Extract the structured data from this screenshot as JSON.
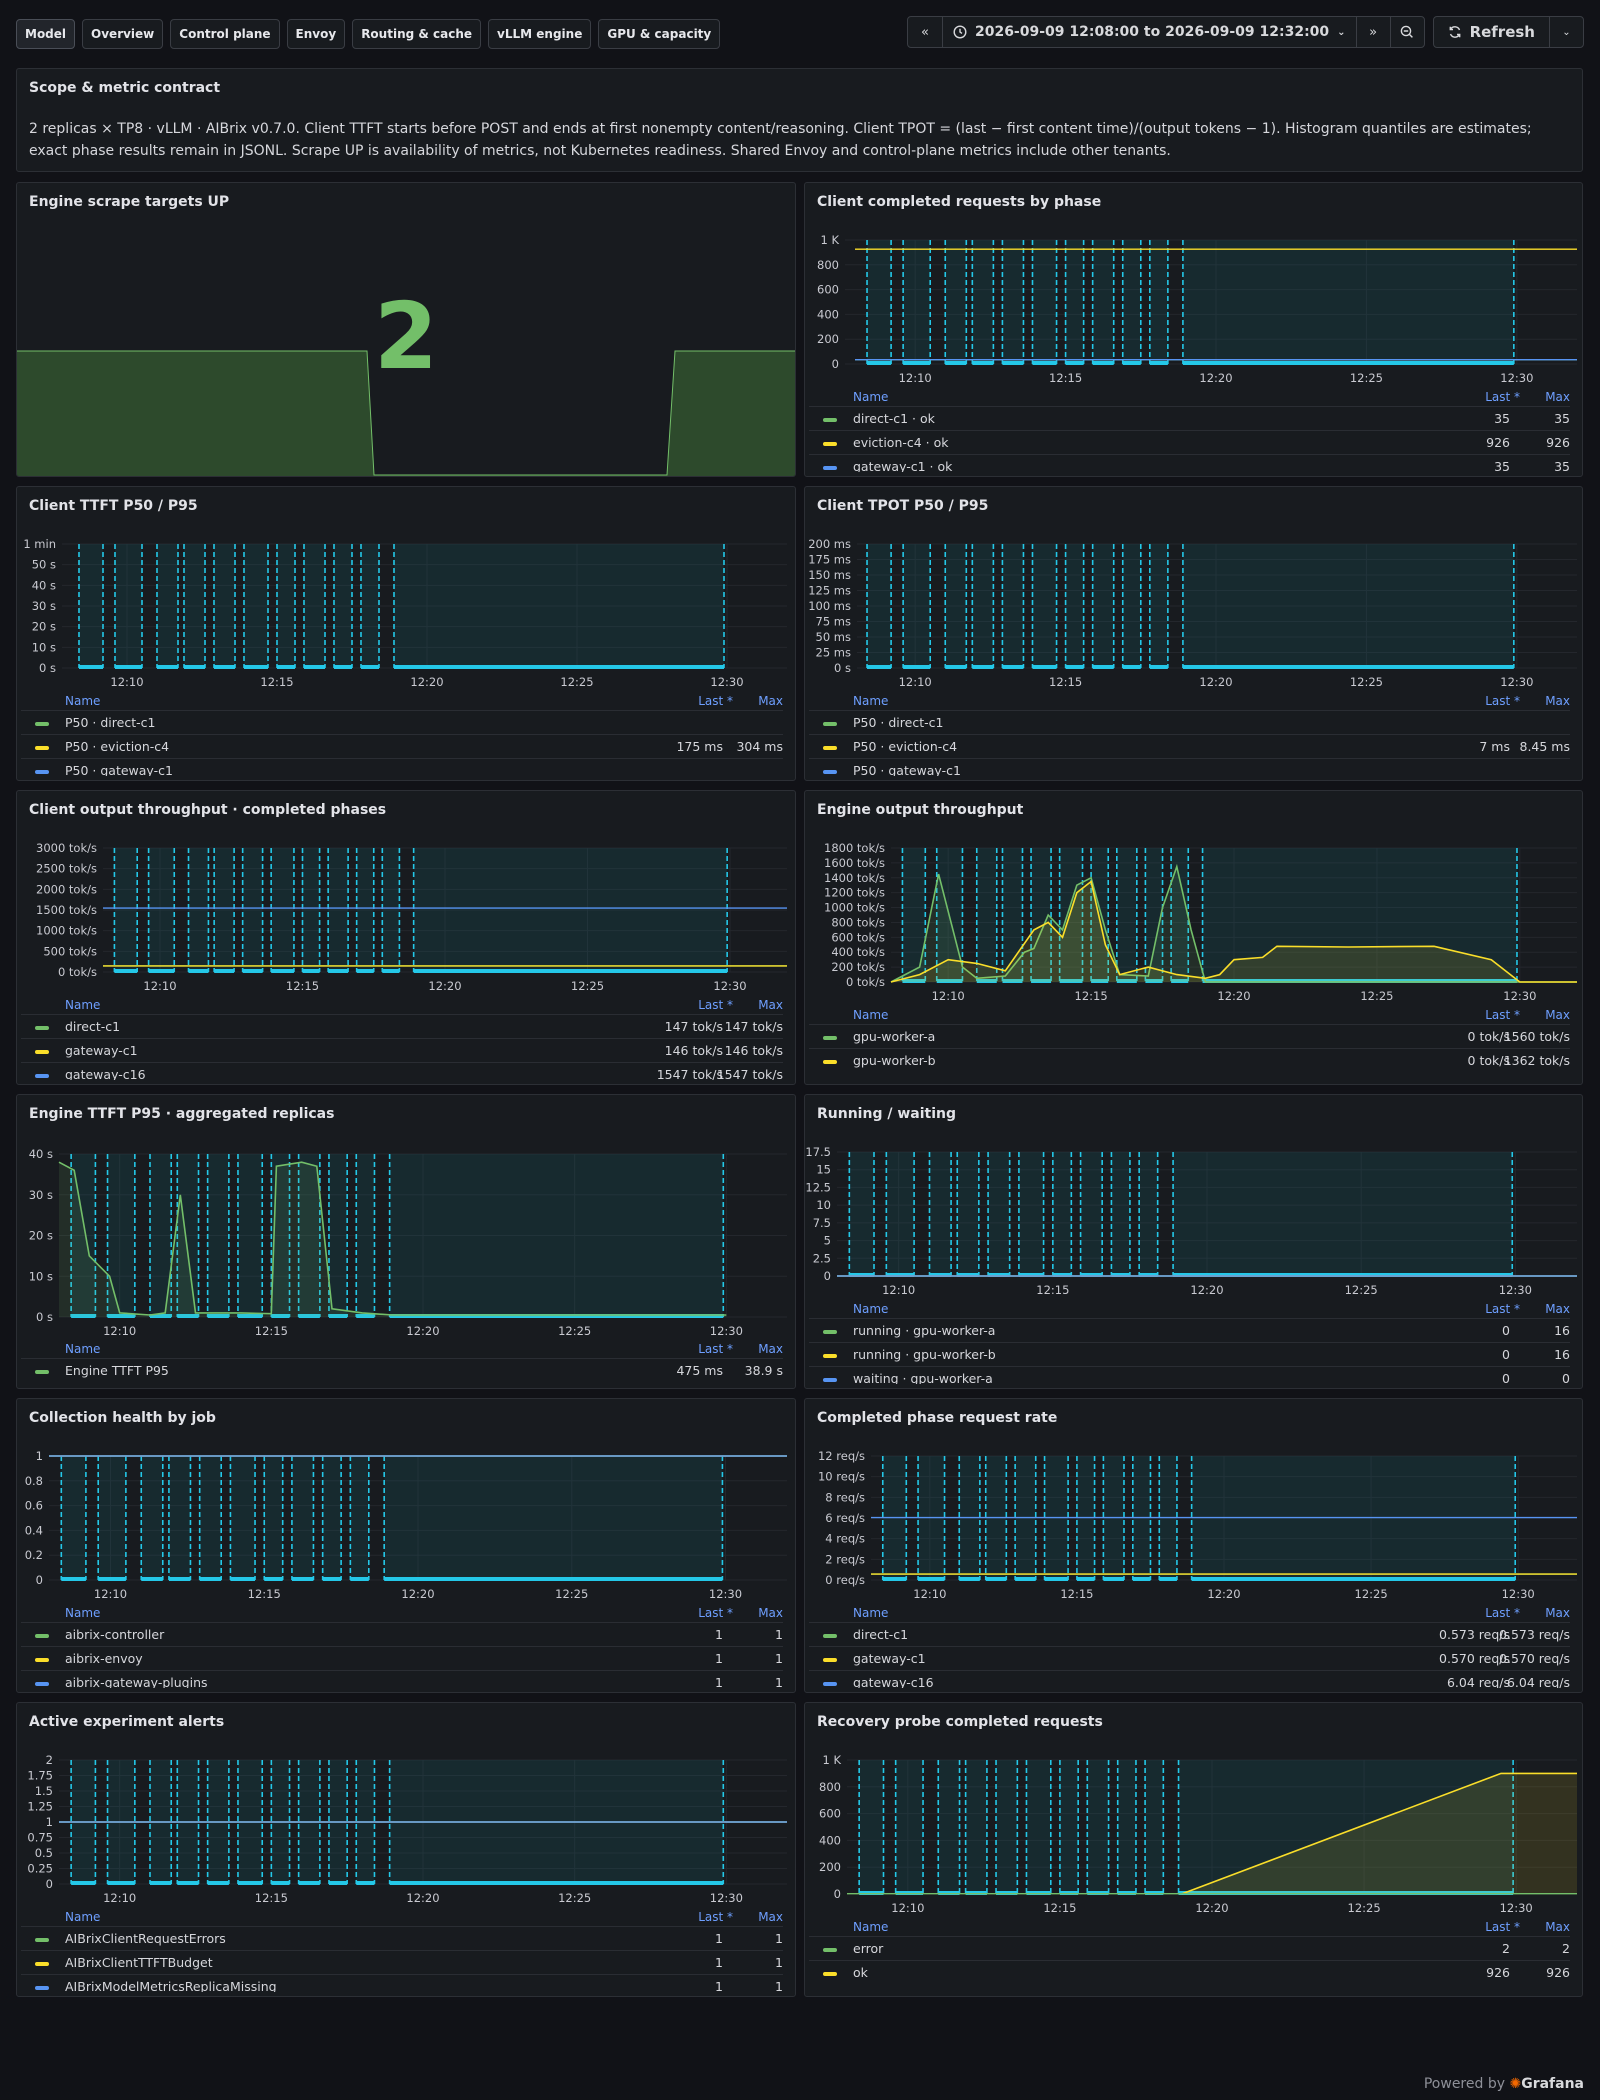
{
  "tabs": [
    "Model",
    "Overview",
    "Control plane",
    "Envoy",
    "Routing & cache",
    "vLLM engine",
    "GPU & capacity"
  ],
  "time_range": "2026-09-09 12:08:00 to 2026-09-09 12:32:00",
  "refresh_label": "Refresh",
  "footer": {
    "powered": "Powered by",
    "brand": "Grafana"
  },
  "scope": {
    "title": "Scope & metric contract",
    "text": "2 replicas × TP8 · vLLM · AIBrix v0.7.0. Client TTFT starts before POST and ends at first nonempty content/reasoning. Client TPOT = (last − first content time)/(output tokens − 1). Histogram quantiles are estimates; exact phase results remain in JSONL. Scrape UP is availability of metrics, not Kubernetes readiness. Shared Envoy and control-plane metrics include other tenants."
  },
  "stat": {
    "title": "Engine scrape targets UP",
    "value": "2"
  },
  "panels": [
    {
      "id": "completed",
      "title": "Client completed requests by phase",
      "col_last": "Last *",
      "col_max": "Max",
      "y_ticks": [
        "0",
        "200",
        "400",
        "600",
        "800",
        "1 K"
      ],
      "x_ticks": [
        "12:10",
        "12:15",
        "12:20",
        "12:25",
        "12:30"
      ],
      "legend": [
        {
          "name": "direct-c1 · ok",
          "last": "35",
          "max": "35",
          "color": "#73bf69"
        },
        {
          "name": "eviction-c4 · ok",
          "last": "926",
          "max": "926",
          "color": "#fade2a"
        },
        {
          "name": "gateway-c1 · ok",
          "last": "35",
          "max": "35",
          "color": "#5794f2"
        }
      ]
    },
    {
      "id": "ttft",
      "title": "Client TTFT P50 / P95",
      "col_last": "Last *",
      "col_max": "Max",
      "y_ticks": [
        "0 s",
        "10 s",
        "20 s",
        "30 s",
        "40 s",
        "50 s",
        "1 min"
      ],
      "x_ticks": [
        "12:10",
        "12:15",
        "12:20",
        "12:25",
        "12:30"
      ],
      "legend": [
        {
          "name": "P50 · direct-c1",
          "last": "",
          "max": "",
          "color": "#73bf69"
        },
        {
          "name": "P50 · eviction-c4",
          "last": "175 ms",
          "max": "304 ms",
          "color": "#fade2a"
        },
        {
          "name": "P50 · gateway-c1",
          "last": "",
          "max": "",
          "color": "#5794f2"
        }
      ]
    },
    {
      "id": "tpot",
      "title": "Client TPOT P50 / P95",
      "col_last": "Last *",
      "col_max": "Max",
      "y_ticks": [
        "0 s",
        "25 ms",
        "50 ms",
        "75 ms",
        "100 ms",
        "125 ms",
        "150 ms",
        "175 ms",
        "200 ms"
      ],
      "x_ticks": [
        "12:10",
        "12:15",
        "12:20",
        "12:25",
        "12:30"
      ],
      "legend": [
        {
          "name": "P50 · direct-c1",
          "last": "",
          "max": "",
          "color": "#73bf69"
        },
        {
          "name": "P50 · eviction-c4",
          "last": "7 ms",
          "max": "8.45 ms",
          "color": "#fade2a"
        },
        {
          "name": "P50 · gateway-c1",
          "last": "",
          "max": "",
          "color": "#5794f2"
        }
      ]
    },
    {
      "id": "cthru",
      "title": "Client output throughput · completed phases",
      "col_last": "Last *",
      "col_max": "Max",
      "y_ticks": [
        "0 tok/s",
        "500 tok/s",
        "1000 tok/s",
        "1500 tok/s",
        "2000 tok/s",
        "2500 tok/s",
        "3000 tok/s"
      ],
      "x_ticks": [
        "12:10",
        "12:15",
        "12:20",
        "12:25",
        "12:30"
      ],
      "legend": [
        {
          "name": "direct-c1",
          "last": "147 tok/s",
          "max": "147 tok/s",
          "color": "#73bf69"
        },
        {
          "name": "gateway-c1",
          "last": "146 tok/s",
          "max": "146 tok/s",
          "color": "#fade2a"
        },
        {
          "name": "gateway-c16",
          "last": "1547 tok/s",
          "max": "1547 tok/s",
          "color": "#5794f2"
        }
      ]
    },
    {
      "id": "ethru",
      "title": "Engine output throughput",
      "col_last": "Last *",
      "col_max": "Max",
      "y_ticks": [
        "0 tok/s",
        "200 tok/s",
        "400 tok/s",
        "600 tok/s",
        "800 tok/s",
        "1000 tok/s",
        "1200 tok/s",
        "1400 tok/s",
        "1600 tok/s",
        "1800 tok/s"
      ],
      "x_ticks": [
        "12:10",
        "12:15",
        "12:20",
        "12:25",
        "12:30"
      ],
      "legend": [
        {
          "name": "gpu-worker-a",
          "last": "0 tok/s",
          "max": "1560 tok/s",
          "color": "#73bf69"
        },
        {
          "name": "gpu-worker-b",
          "last": "0 tok/s",
          "max": "1362 tok/s",
          "color": "#fade2a"
        }
      ]
    },
    {
      "id": "ettft",
      "title": "Engine TTFT P95 · aggregated replicas",
      "col_last": "Last *",
      "col_max": "Max",
      "y_ticks": [
        "0 s",
        "10 s",
        "20 s",
        "30 s",
        "40 s"
      ],
      "x_ticks": [
        "12:10",
        "12:15",
        "12:20",
        "12:25",
        "12:30"
      ],
      "legend": [
        {
          "name": "Engine TTFT P95",
          "last": "475 ms",
          "max": "38.9 s",
          "color": "#73bf69"
        }
      ]
    },
    {
      "id": "running",
      "title": "Running / waiting",
      "col_last": "Last *",
      "col_max": "Max",
      "y_ticks": [
        "0",
        "2.5",
        "5",
        "7.5",
        "10",
        "12.5",
        "15",
        "17.5"
      ],
      "x_ticks": [
        "12:10",
        "12:15",
        "12:20",
        "12:25",
        "12:30"
      ],
      "legend": [
        {
          "name": "running · gpu-worker-a",
          "last": "0",
          "max": "16",
          "color": "#73bf69"
        },
        {
          "name": "running · gpu-worker-b",
          "last": "0",
          "max": "16",
          "color": "#fade2a"
        },
        {
          "name": "waiting · gpu-worker-a",
          "last": "0",
          "max": "0",
          "color": "#5794f2"
        }
      ]
    },
    {
      "id": "health",
      "title": "Collection health by job",
      "col_last": "Last *",
      "col_max": "Max",
      "y_ticks": [
        "0",
        "0.2",
        "0.4",
        "0.6",
        "0.8",
        "1"
      ],
      "x_ticks": [
        "12:10",
        "12:15",
        "12:20",
        "12:25",
        "12:30"
      ],
      "legend": [
        {
          "name": "aibrix-controller",
          "last": "1",
          "max": "1",
          "color": "#73bf69"
        },
        {
          "name": "aibrix-envoy",
          "last": "1",
          "max": "1",
          "color": "#fade2a"
        },
        {
          "name": "aibrix-gateway-plugins",
          "last": "1",
          "max": "1",
          "color": "#5794f2"
        }
      ]
    },
    {
      "id": "rate",
      "title": "Completed phase request rate",
      "col_last": "Last *",
      "col_max": "Max",
      "y_ticks": [
        "0 req/s",
        "2 req/s",
        "4 req/s",
        "6 req/s",
        "8 req/s",
        "10 req/s",
        "12 req/s"
      ],
      "x_ticks": [
        "12:10",
        "12:15",
        "12:20",
        "12:25",
        "12:30"
      ],
      "legend": [
        {
          "name": "direct-c1",
          "last": "0.573 req/s",
          "max": "0.573 req/s",
          "color": "#73bf69"
        },
        {
          "name": "gateway-c1",
          "last": "0.570 req/s",
          "max": "0.570 req/s",
          "color": "#fade2a"
        },
        {
          "name": "gateway-c16",
          "last": "6.04 req/s",
          "max": "6.04 req/s",
          "color": "#5794f2"
        }
      ]
    },
    {
      "id": "alerts",
      "title": "Active experiment alerts",
      "col_last": "Last *",
      "col_max": "Max",
      "y_ticks": [
        "0",
        "0.25",
        "0.5",
        "0.75",
        "1",
        "1.25",
        "1.5",
        "1.75",
        "2"
      ],
      "x_ticks": [
        "12:10",
        "12:15",
        "12:20",
        "12:25",
        "12:30"
      ],
      "legend": [
        {
          "name": "AIBrixClientRequestErrors",
          "last": "1",
          "max": "1",
          "color": "#73bf69"
        },
        {
          "name": "AIBrixClientTTFTBudget",
          "last": "1",
          "max": "1",
          "color": "#fade2a"
        },
        {
          "name": "AIBrixModelMetricsReplicaMissing",
          "last": "1",
          "max": "1",
          "color": "#5794f2"
        }
      ]
    },
    {
      "id": "recovery",
      "title": "Recovery probe completed requests",
      "col_last": "Last *",
      "col_max": "Max",
      "y_ticks": [
        "0",
        "200",
        "400",
        "600",
        "800",
        "1 K"
      ],
      "x_ticks": [
        "12:10",
        "12:15",
        "12:20",
        "12:25",
        "12:30"
      ],
      "legend": [
        {
          "name": "error",
          "last": "2",
          "max": "2",
          "color": "#73bf69"
        },
        {
          "name": "ok",
          "last": "926",
          "max": "926",
          "color": "#fade2a"
        }
      ]
    }
  ],
  "chart_data": [
    {
      "type": "line",
      "title": "Client completed requests by phase",
      "x_range": [
        "12:08",
        "12:32"
      ],
      "ylim": [
        0,
        1000
      ],
      "series": [
        {
          "name": "direct-c1 · ok",
          "last": 35,
          "max": 35
        },
        {
          "name": "eviction-c4 · ok",
          "last": 926,
          "max": 926
        },
        {
          "name": "gateway-c1 · ok",
          "last": 35,
          "max": 35
        }
      ]
    },
    {
      "type": "line",
      "title": "Client TTFT P50 / P95",
      "x_range": [
        "12:08",
        "12:32"
      ],
      "y_range_s": [
        0,
        60
      ],
      "series": [
        {
          "name": "P50 · eviction-c4",
          "last_ms": 175,
          "max_ms": 304
        }
      ]
    },
    {
      "type": "line",
      "title": "Client TPOT P50 / P95",
      "x_range": [
        "12:08",
        "12:32"
      ],
      "y_range_ms": [
        0,
        200
      ],
      "series": [
        {
          "name": "P50 · eviction-c4",
          "last_ms": 7,
          "max_ms": 8.45
        }
      ]
    },
    {
      "type": "line",
      "title": "Client output throughput · completed phases",
      "x_range": [
        "12:08",
        "12:32"
      ],
      "ylim": [
        0,
        3000
      ],
      "series": [
        {
          "name": "direct-c1",
          "last": 147,
          "max": 147
        },
        {
          "name": "gateway-c1",
          "last": 146,
          "max": 146
        },
        {
          "name": "gateway-c16",
          "last": 1547,
          "max": 1547
        }
      ]
    },
    {
      "type": "line",
      "title": "Engine output throughput",
      "x_range": [
        "12:08",
        "12:32"
      ],
      "ylim": [
        0,
        1800
      ],
      "series": [
        {
          "name": "gpu-worker-a",
          "last": 0,
          "max": 1560,
          "points": [
            [
              "12:08",
              0
            ],
            [
              "12:09",
              200
            ],
            [
              "12:09:40",
              1450
            ],
            [
              "12:10:30",
              200
            ],
            [
              "12:11",
              50
            ],
            [
              "12:12",
              80
            ],
            [
              "12:12:40",
              400
            ],
            [
              "12:13",
              450
            ],
            [
              "12:13:30",
              900
            ],
            [
              "12:14",
              700
            ],
            [
              "12:14:30",
              1300
            ],
            [
              "12:15",
              1400
            ],
            [
              "12:15:30",
              700
            ],
            [
              "12:16",
              100
            ],
            [
              "12:17",
              80
            ],
            [
              "12:17:30",
              1000
            ],
            [
              "12:18",
              1550
            ],
            [
              "12:18:30",
              700
            ],
            [
              "12:19",
              0
            ],
            [
              "12:32",
              0
            ]
          ]
        },
        {
          "name": "gpu-worker-b",
          "last": 0,
          "max": 1362,
          "points": [
            [
              "12:08",
              0
            ],
            [
              "12:09",
              100
            ],
            [
              "12:10",
              300
            ],
            [
              "12:11",
              250
            ],
            [
              "12:12",
              150
            ],
            [
              "12:13",
              700
            ],
            [
              "12:13:30",
              800
            ],
            [
              "12:14",
              600
            ],
            [
              "12:14:30",
              1200
            ],
            [
              "12:15",
              1350
            ],
            [
              "12:15:30",
              500
            ],
            [
              "12:16",
              100
            ],
            [
              "12:17",
              200
            ],
            [
              "12:18",
              100
            ],
            [
              "12:19",
              50
            ],
            [
              "12:19:30",
              100
            ],
            [
              "12:20",
              300
            ],
            [
              "12:21",
              330
            ],
            [
              "12:21:30",
              480
            ],
            [
              "12:24",
              470
            ],
            [
              "12:27",
              480
            ],
            [
              "12:29",
              300
            ],
            [
              "12:30",
              0
            ],
            [
              "12:32",
              0
            ]
          ]
        }
      ]
    },
    {
      "type": "line",
      "title": "Engine TTFT P95 · aggregated replicas",
      "x_range": [
        "12:08",
        "12:32"
      ],
      "y_range_s": [
        0,
        40
      ],
      "series": [
        {
          "name": "Engine TTFT P95",
          "last_ms": 475,
          "max_s": 38.9,
          "points": [
            [
              "12:08",
              38
            ],
            [
              "12:08:30",
              36
            ],
            [
              "12:09",
              15
            ],
            [
              "12:09:40",
              10
            ],
            [
              "12:10",
              1
            ],
            [
              "12:11",
              0.5
            ],
            [
              "12:11:30",
              1
            ],
            [
              "12:12",
              30
            ],
            [
              "12:12:30",
              1
            ],
            [
              "12:14",
              1
            ],
            [
              "12:15",
              0.8
            ],
            [
              "12:15:10",
              37
            ],
            [
              "12:16",
              38
            ],
            [
              "12:16:30",
              37
            ],
            [
              "12:17",
              2
            ],
            [
              "12:18",
              1
            ],
            [
              "12:19",
              0.5
            ],
            [
              "12:30",
              0.5
            ]
          ]
        }
      ]
    },
    {
      "type": "line",
      "title": "Running / waiting",
      "x_range": [
        "12:08",
        "12:32"
      ],
      "ylim": [
        0,
        17.5
      ],
      "series": [
        {
          "name": "running · gpu-worker-a",
          "last": 0,
          "max": 16
        },
        {
          "name": "running · gpu-worker-b",
          "last": 0,
          "max": 16
        },
        {
          "name": "waiting · gpu-worker-a",
          "last": 0,
          "max": 0
        }
      ]
    },
    {
      "type": "line",
      "title": "Collection health by job",
      "x_range": [
        "12:08",
        "12:32"
      ],
      "ylim": [
        0,
        1
      ],
      "series": [
        {
          "name": "aibrix-controller",
          "last": 1,
          "max": 1
        },
        {
          "name": "aibrix-envoy",
          "last": 1,
          "max": 1
        },
        {
          "name": "aibrix-gateway-plugins",
          "last": 1,
          "max": 1
        }
      ]
    },
    {
      "type": "line",
      "title": "Completed phase request rate",
      "x_range": [
        "12:08",
        "12:32"
      ],
      "ylim": [
        0,
        12
      ],
      "series": [
        {
          "name": "direct-c1",
          "last": 0.573,
          "max": 0.573
        },
        {
          "name": "gateway-c1",
          "last": 0.57,
          "max": 0.57
        },
        {
          "name": "gateway-c16",
          "last": 6.04,
          "max": 6.04
        }
      ]
    },
    {
      "type": "line",
      "title": "Active experiment alerts",
      "x_range": [
        "12:08",
        "12:32"
      ],
      "ylim": [
        0,
        2
      ],
      "series": [
        {
          "name": "AIBrixClientRequestErrors",
          "last": 1,
          "max": 1
        },
        {
          "name": "AIBrixClientTTFTBudget",
          "last": 1,
          "max": 1
        },
        {
          "name": "AIBrixModelMetricsReplicaMissing",
          "last": 1,
          "max": 1
        }
      ]
    },
    {
      "type": "line",
      "title": "Recovery probe completed requests",
      "x_range": [
        "12:08",
        "12:32"
      ],
      "ylim": [
        0,
        1000
      ],
      "series": [
        {
          "name": "error",
          "last": 2,
          "max": 2
        },
        {
          "name": "ok",
          "last": 926,
          "max": 926,
          "points": [
            [
              "12:19",
              0
            ],
            [
              "12:29:30",
              900
            ],
            [
              "12:32",
              900
            ]
          ]
        }
      ]
    }
  ]
}
